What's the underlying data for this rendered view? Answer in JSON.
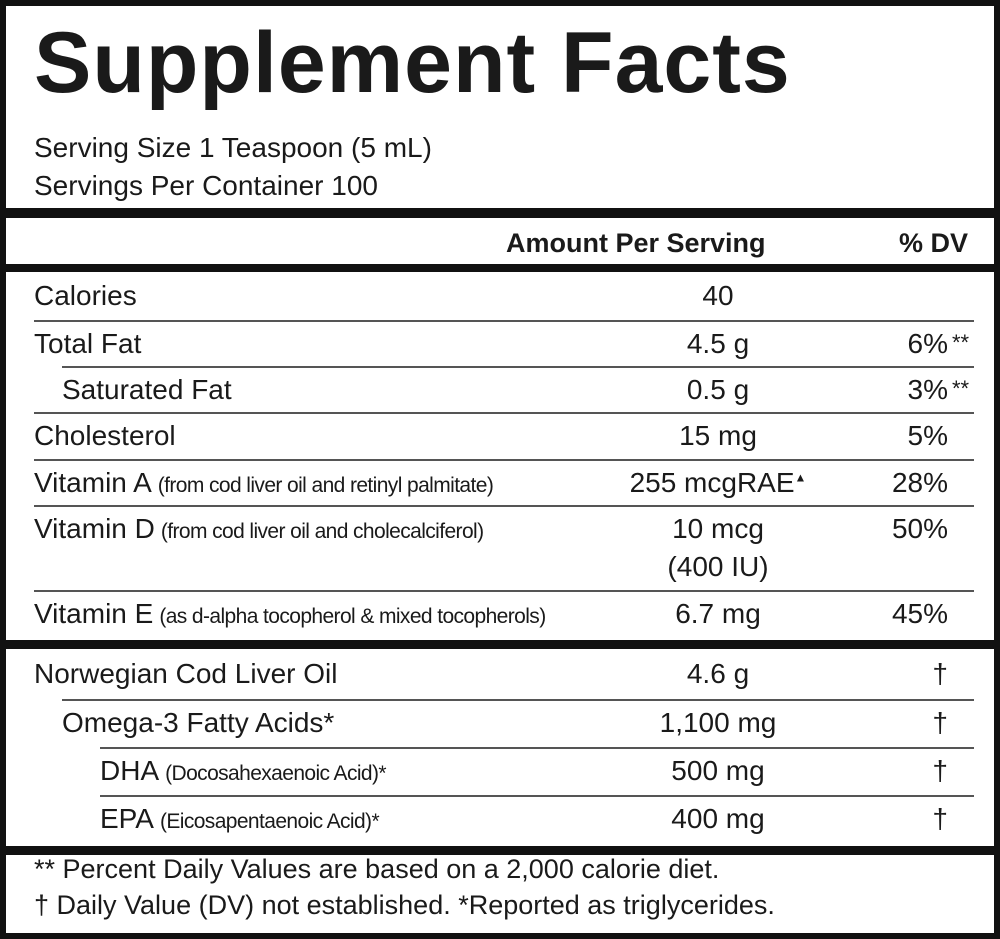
{
  "title": "Supplement Facts",
  "serving_size": "Serving Size 1 Teaspoon (5 mL)",
  "servings_per_container": "Servings Per Container 100",
  "header": {
    "amount": "Amount Per Serving",
    "dv": "% DV"
  },
  "sections": [
    {
      "rows": [
        {
          "name": "Calories",
          "amount": "40"
        },
        {
          "name": "Total Fat",
          "amount": "4.5 g",
          "dv": "6%",
          "dv_note": "**"
        },
        {
          "name": "Saturated Fat",
          "amount": "0.5 g",
          "dv": "3%",
          "dv_note": "**"
        },
        {
          "name": "Cholesterol",
          "amount": "15 mg",
          "dv": "5%"
        },
        {
          "name": "Vitamin A",
          "detail": "(from cod liver oil and retinyl palmitate)",
          "amount": "255 mcgRAE",
          "amount_sup": "▲",
          "dv": "28%"
        },
        {
          "name": "Vitamin D",
          "detail": "(from cod liver oil and cholecalciferol)",
          "amount": "10 mcg",
          "amount_2": "(400 IU)",
          "dv": "50%"
        },
        {
          "name": "Vitamin E",
          "detail": "(as d-alpha tocopherol & mixed tocopherols)",
          "amount": "6.7 mg",
          "dv": "45%"
        }
      ]
    },
    {
      "rows": [
        {
          "name": "Norwegian Cod Liver Oil",
          "amount": "4.6 g",
          "dv": "†"
        },
        {
          "name": "Omega-3 Fatty Acids*",
          "amount": "1,100 mg",
          "dv": "†"
        },
        {
          "name": "DHA",
          "detail": "(Docosahexaenoic Acid)*",
          "amount": "500 mg",
          "dv": "†"
        },
        {
          "name": "EPA",
          "detail": "(Eicosapentaenoic Acid)*",
          "amount": "400 mg",
          "dv": "†"
        }
      ]
    }
  ],
  "footnotes": [
    "** Percent Daily Values are based on a 2,000 calorie diet.",
    "† Daily Value (DV) not established. *Reported as triglycerides."
  ]
}
